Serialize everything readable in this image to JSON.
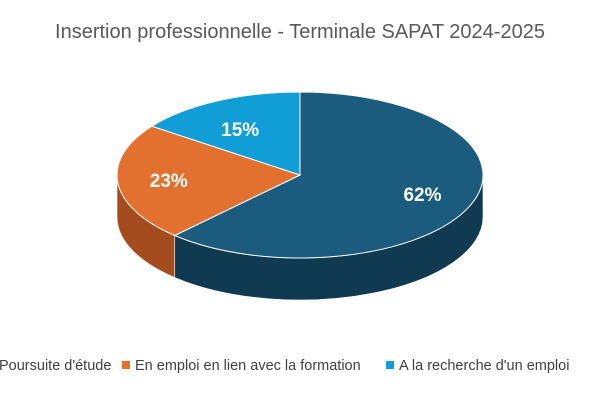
{
  "chart_data": {
    "type": "pie",
    "title": "Insertion professionnelle - Terminale SAPAT 2024-2025",
    "categories": [
      "Poursuite d'étude",
      "En emploi en lien avec la formation",
      "A la recherche d'un emploi"
    ],
    "values": [
      62,
      23,
      15
    ],
    "value_labels": [
      "62%",
      "23%",
      "15%"
    ],
    "colors": [
      "#1b5b7e",
      "#e2702f",
      "#119dd6"
    ],
    "side_colors": [
      "#0f3a52",
      "#a54c1e",
      "#0a6f99"
    ],
    "legend_position": "bottom",
    "style": "3d"
  }
}
